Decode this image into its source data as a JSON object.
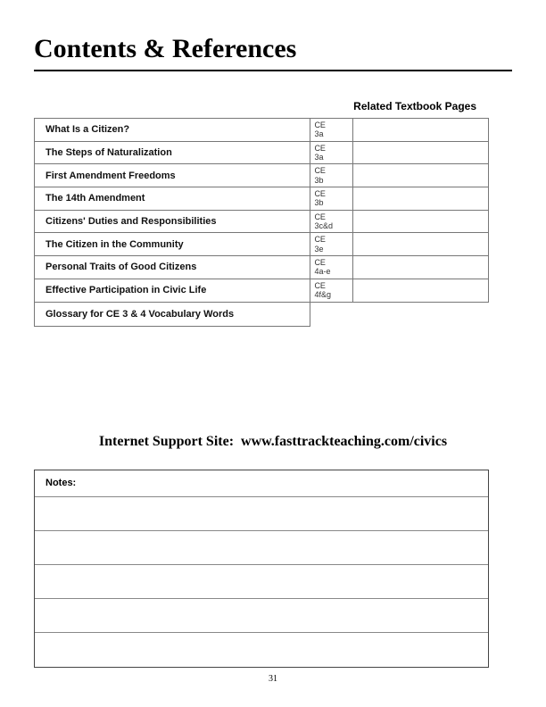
{
  "page_title": "Contents & References",
  "related_heading": "Related Textbook Pages",
  "rows": [
    {
      "title": "What Is a Citizen?",
      "code1": "CE",
      "code2": "3a",
      "has_ref": true
    },
    {
      "title": "The Steps of Naturalization",
      "code1": "CE",
      "code2": "3a",
      "has_ref": true
    },
    {
      "title": "First Amendment Freedoms",
      "code1": "CE",
      "code2": "3b",
      "has_ref": true
    },
    {
      "title": "The 14th Amendment",
      "code1": "CE",
      "code2": "3b",
      "has_ref": true
    },
    {
      "title": "Citizens' Duties and Responsibilities",
      "code1": "CE",
      "code2": "3c&d",
      "has_ref": true
    },
    {
      "title": "The Citizen in the Community",
      "code1": "CE",
      "code2": "3e",
      "has_ref": true
    },
    {
      "title": "Personal Traits of Good Citizens",
      "code1": "CE",
      "code2": "4a-e",
      "has_ref": true
    },
    {
      "title": "Effective Participation in Civic Life",
      "code1": "CE",
      "code2": "4f&g",
      "has_ref": true
    },
    {
      "title": "Glossary for CE 3 & 4 Vocabulary Words",
      "code1": "",
      "code2": "",
      "has_ref": false
    }
  ],
  "support_label": "Internet Support Site:  www.fasttrackteaching.com/civics",
  "notes_label": "Notes:",
  "notes_blank_rows": 5,
  "page_number": "31",
  "colors": {
    "border": "#777777",
    "text": "#000000",
    "code_text": "#333333"
  }
}
